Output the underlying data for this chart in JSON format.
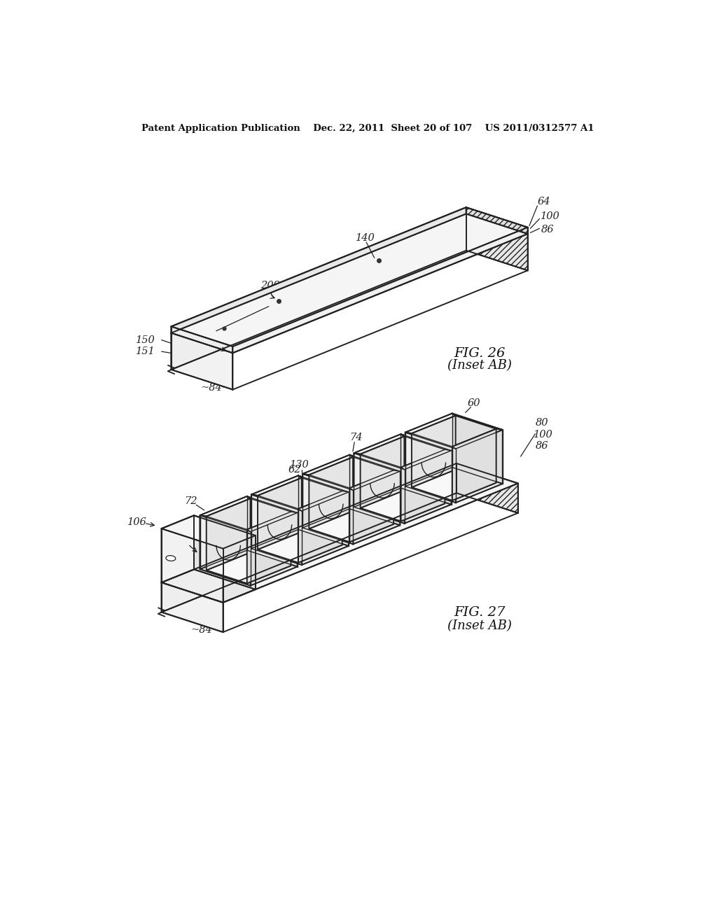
{
  "background_color": "#ffffff",
  "header_text": "Patent Application Publication    Dec. 22, 2011  Sheet 20 of 107    US 2011/0312577 A1",
  "fig26_label": "FIG. 26",
  "fig26_sub": "(Inset AB)",
  "fig27_label": "FIG. 27",
  "fig27_sub": "(Inset AB)",
  "line_color": "#222222",
  "label_color": "#222222",
  "label_fontsize": 10.5,
  "header_fontsize": 9.5,
  "fig_label_fontsize": 14
}
